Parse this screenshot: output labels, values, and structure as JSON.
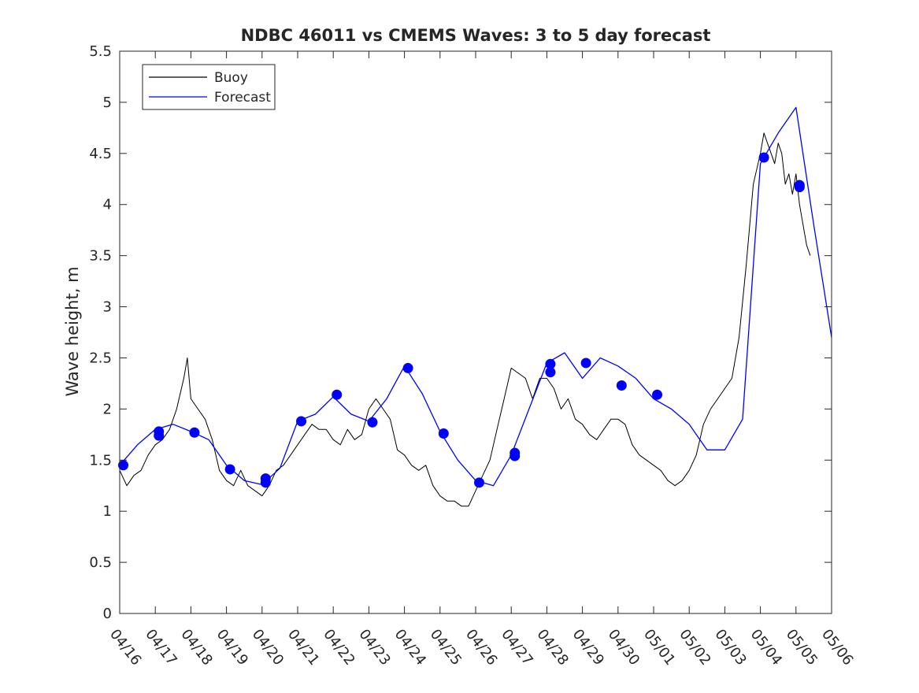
{
  "chart_data": {
    "type": "line",
    "title": "NDBC 46011 vs CMEMS Waves: 3 to 5 day forecast",
    "ylabel": "Wave height, m",
    "xlabel": "",
    "ylim": [
      0,
      5.5
    ],
    "xlim": [
      0,
      20
    ],
    "yticks": [
      "0",
      "0.5",
      "1",
      "1.5",
      "2",
      "2.5",
      "3",
      "3.5",
      "4",
      "4.5",
      "5",
      "5.5"
    ],
    "xticks": [
      "04/16",
      "04/17",
      "04/18",
      "04/19",
      "04/20",
      "04/21",
      "04/22",
      "04/23",
      "04/24",
      "04/25",
      "04/26",
      "04/27",
      "04/28",
      "04/29",
      "04/30",
      "05/01",
      "05/02",
      "05/03",
      "05/04",
      "05/05",
      "05/06"
    ],
    "legend": {
      "position": "top-left",
      "entries": [
        "Buoy",
        "Forecast"
      ]
    },
    "colors": {
      "buoy": "#000000",
      "forecast": "#0000ff",
      "axis": "#262626"
    },
    "grid": false,
    "series": [
      {
        "name": "Buoy",
        "style": "line",
        "x": [
          0.0,
          0.2,
          0.4,
          0.6,
          0.8,
          1.0,
          1.2,
          1.4,
          1.6,
          1.8,
          1.9,
          2.0,
          2.2,
          2.4,
          2.6,
          2.8,
          3.0,
          3.2,
          3.4,
          3.6,
          3.8,
          4.0,
          4.2,
          4.4,
          4.6,
          4.8,
          5.0,
          5.2,
          5.4,
          5.6,
          5.8,
          6.0,
          6.2,
          6.4,
          6.6,
          6.8,
          7.0,
          7.2,
          7.4,
          7.6,
          7.8,
          8.0,
          8.2,
          8.4,
          8.6,
          8.8,
          9.0,
          9.2,
          9.4,
          9.6,
          9.8,
          10.0,
          10.2,
          10.4,
          10.6,
          10.8,
          11.0,
          11.2,
          11.4,
          11.6,
          11.8,
          12.0,
          12.2,
          12.4,
          12.6,
          12.8,
          13.0,
          13.2,
          13.4,
          13.6,
          13.8,
          14.0,
          14.2,
          14.4,
          14.6,
          14.8,
          15.0,
          15.2,
          15.4,
          15.6,
          15.8,
          16.0,
          16.2,
          16.4,
          16.6,
          16.8,
          17.0,
          17.2,
          17.4,
          17.6,
          17.8,
          18.0,
          18.1,
          18.2,
          18.3,
          18.4,
          18.5,
          18.6,
          18.7,
          18.8,
          18.9,
          19.0,
          19.1,
          19.2,
          19.3,
          19.4
        ],
        "y": [
          1.4,
          1.25,
          1.35,
          1.4,
          1.55,
          1.65,
          1.7,
          1.8,
          2.0,
          2.3,
          2.5,
          2.1,
          2.0,
          1.9,
          1.7,
          1.4,
          1.3,
          1.25,
          1.4,
          1.25,
          1.2,
          1.15,
          1.25,
          1.4,
          1.45,
          1.55,
          1.65,
          1.75,
          1.85,
          1.8,
          1.8,
          1.7,
          1.65,
          1.8,
          1.7,
          1.75,
          2.0,
          2.1,
          2.0,
          1.9,
          1.6,
          1.55,
          1.45,
          1.4,
          1.45,
          1.25,
          1.15,
          1.1,
          1.1,
          1.05,
          1.05,
          1.2,
          1.35,
          1.5,
          1.8,
          2.1,
          2.4,
          2.35,
          2.3,
          2.1,
          2.3,
          2.3,
          2.2,
          2.0,
          2.1,
          1.9,
          1.85,
          1.75,
          1.7,
          1.8,
          1.9,
          1.9,
          1.85,
          1.65,
          1.55,
          1.5,
          1.45,
          1.4,
          1.3,
          1.25,
          1.3,
          1.4,
          1.55,
          1.85,
          2.0,
          2.1,
          2.2,
          2.3,
          2.7,
          3.4,
          4.2,
          4.5,
          4.7,
          4.6,
          4.5,
          4.4,
          4.6,
          4.5,
          4.2,
          4.3,
          4.1,
          4.3,
          4.0,
          3.8,
          3.6,
          3.5
        ]
      },
      {
        "name": "Forecast",
        "style": "line",
        "x": [
          0.0,
          0.5,
          1.0,
          1.5,
          2.0,
          2.5,
          3.0,
          3.5,
          4.0,
          4.5,
          5.0,
          5.5,
          6.0,
          6.5,
          7.0,
          7.5,
          8.0,
          8.5,
          9.0,
          9.5,
          10.0,
          10.5,
          11.0,
          11.5,
          12.0,
          12.5,
          13.0,
          13.5,
          14.0,
          14.5,
          15.0,
          15.5,
          16.0,
          16.5,
          17.0,
          17.5,
          18.0,
          18.5,
          19.0,
          19.5,
          20.0
        ],
        "y": [
          1.45,
          1.65,
          1.8,
          1.85,
          1.78,
          1.7,
          1.45,
          1.3,
          1.26,
          1.42,
          1.88,
          1.95,
          2.12,
          1.95,
          1.88,
          2.1,
          2.42,
          2.15,
          1.78,
          1.5,
          1.3,
          1.25,
          1.55,
          2.0,
          2.45,
          2.55,
          2.3,
          2.5,
          2.42,
          2.3,
          2.1,
          2.0,
          1.85,
          1.6,
          1.6,
          1.9,
          4.4,
          4.7,
          4.95,
          3.8,
          2.7
        ]
      },
      {
        "name": "",
        "style": "markers",
        "x": [
          0.1,
          1.1,
          1.1,
          2.1,
          3.1,
          4.1,
          4.1,
          5.1,
          6.1,
          7.1,
          8.1,
          9.1,
          10.1,
          11.1,
          11.1,
          12.1,
          12.1,
          13.1,
          14.1,
          15.1,
          18.1,
          19.1,
          19.1
        ],
        "y": [
          1.45,
          1.74,
          1.78,
          1.77,
          1.41,
          1.28,
          1.32,
          1.88,
          2.14,
          1.87,
          2.4,
          1.76,
          1.28,
          1.54,
          1.57,
          2.36,
          2.44,
          2.45,
          2.23,
          2.14,
          4.46,
          4.17,
          4.19
        ]
      }
    ]
  }
}
